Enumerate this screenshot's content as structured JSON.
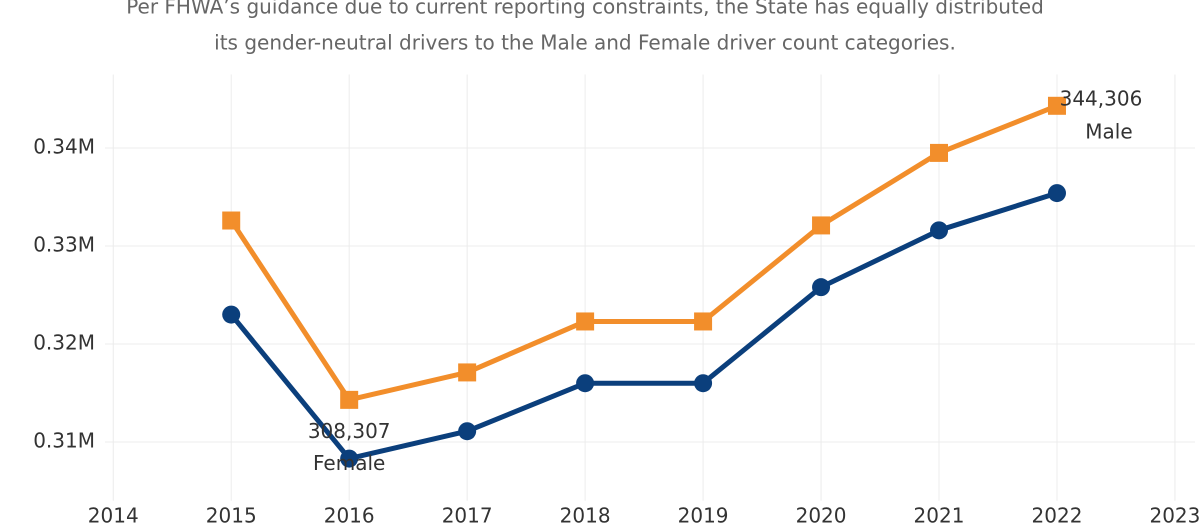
{
  "chart_data": {
    "type": "line",
    "subtitle": [
      "Per FHWA’s guidance due to current reporting constraints, the State has equally distributed",
      "its gender-neutral drivers to the Male and Female driver count categories."
    ],
    "x": [
      2015,
      2016,
      2017,
      2018,
      2019,
      2020,
      2021,
      2022
    ],
    "series": [
      {
        "name": "Male",
        "color": "#f28e2b",
        "marker": "square",
        "values": [
          332600,
          314300,
          317100,
          322300,
          322300,
          332100,
          339500,
          344306
        ],
        "value_labels": [
          null,
          null,
          null,
          null,
          null,
          null,
          null,
          "344,306"
        ]
      },
      {
        "name": "Female",
        "color": "#0b3f7c",
        "marker": "circle",
        "values": [
          323000,
          308307,
          311100,
          316000,
          316000,
          325800,
          331600,
          335400
        ],
        "value_labels": [
          null,
          "308,307",
          null,
          null,
          null,
          null,
          null,
          null
        ]
      }
    ],
    "xlim": [
      2013.93,
      2023.17
    ],
    "xticks": [
      2014,
      2015,
      2016,
      2017,
      2018,
      2019,
      2020,
      2021,
      2022,
      2023
    ],
    "ylim": [
      304000,
      347500
    ],
    "yticks": [
      {
        "value": 310000,
        "label": "0.31M"
      },
      {
        "value": 320000,
        "label": "0.32M"
      },
      {
        "value": 330000,
        "label": "0.33M"
      },
      {
        "value": 340000,
        "label": "0.34M"
      }
    ],
    "grid": true
  }
}
